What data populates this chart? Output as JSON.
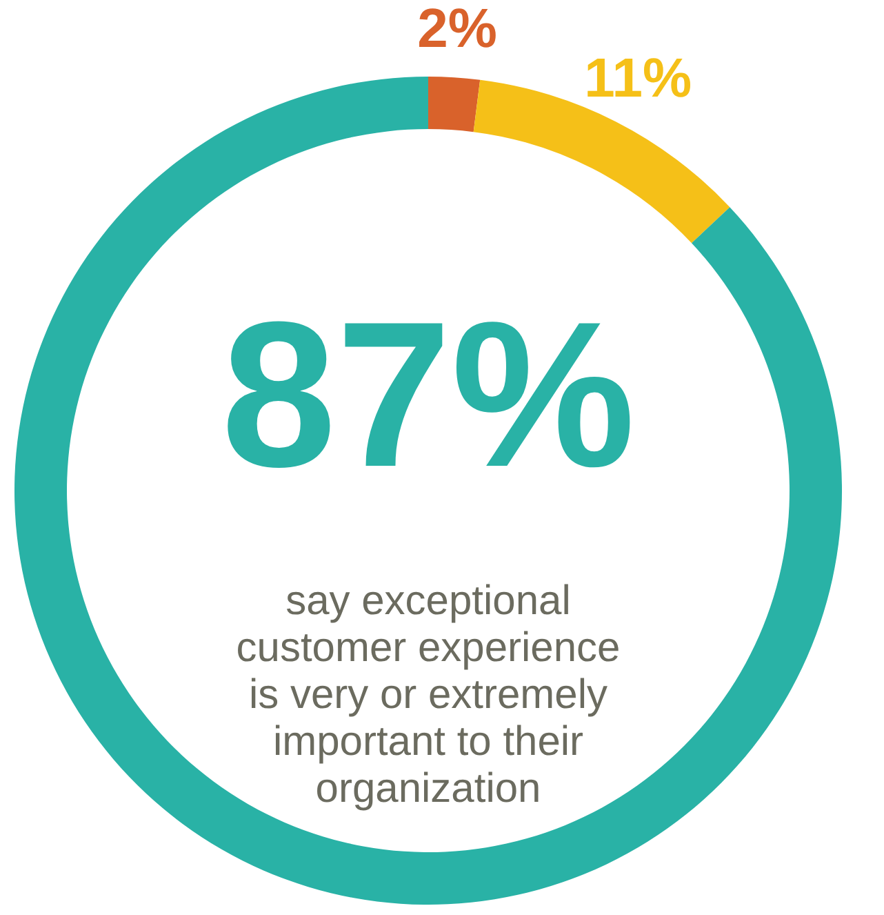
{
  "chart_data": {
    "type": "donut",
    "categories": [
      null,
      null,
      null
    ],
    "values": [
      2,
      11,
      87
    ],
    "colors": [
      "#d9622b",
      "#f5c018",
      "#29b2a6"
    ],
    "value_labels": [
      "2%",
      "11%",
      "87%"
    ],
    "annotations": [
      "say exceptional customer experience is very or extremely important to their organization"
    ]
  }
}
